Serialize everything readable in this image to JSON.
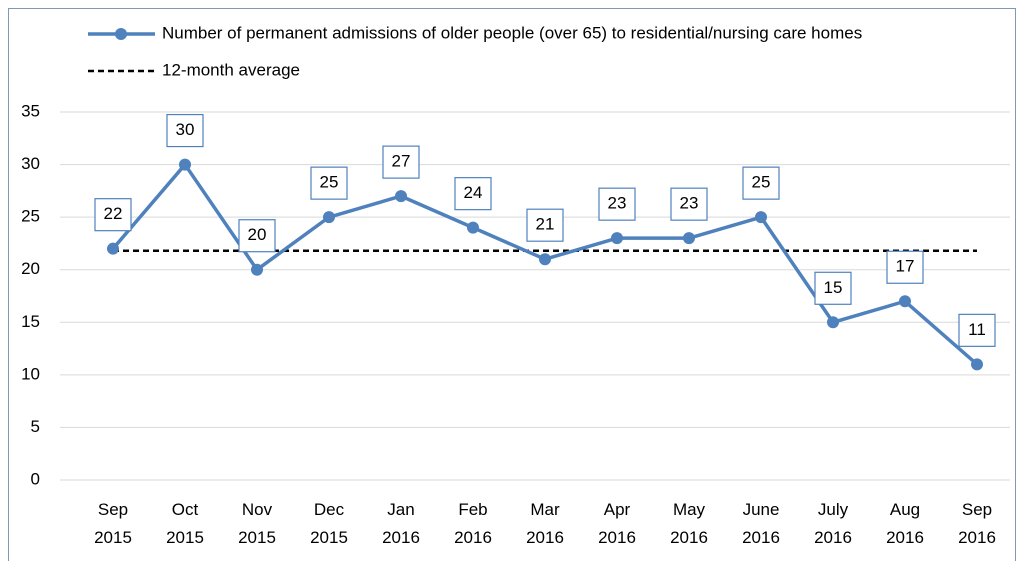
{
  "chart_data": {
    "type": "line",
    "categories": [
      "Sep 2015",
      "Oct 2015",
      "Nov 2015",
      "Dec 2015",
      "Jan 2016",
      "Feb 2016",
      "Mar 2016",
      "Apr 2016",
      "May 2016",
      "June 2016",
      "July 2016",
      "Aug 2016",
      "Sep 2016"
    ],
    "series": [
      {
        "name": "Number of permanent admissions of older people (over 65) to residential/nursing care homes",
        "color": "#4f81bd",
        "values": [
          22,
          30,
          20,
          25,
          27,
          24,
          21,
          23,
          23,
          25,
          15,
          17,
          11
        ]
      }
    ],
    "reference_line": {
      "name": "12-month average",
      "value": 21.8,
      "color": "#000000"
    },
    "ylim": [
      0,
      35
    ],
    "yticks": [
      0,
      5,
      10,
      15,
      20,
      25,
      30,
      35
    ],
    "grid": true,
    "legend": "top"
  }
}
